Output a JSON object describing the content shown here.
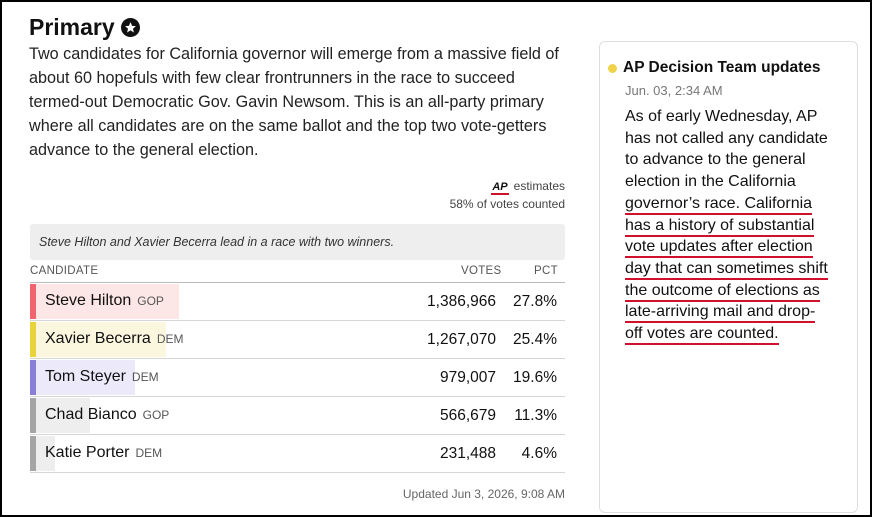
{
  "header": {
    "title": "Primary",
    "description": "Two candidates for California governor will emerge from a massive field of about 60 hopefuls with few clear frontrunners in the race to succeed termed-out Democratic Gov. Gavin Newsom. This is an all-party primary where all candidates are on the same ballot and the top two vote-getters advance to the general election."
  },
  "estimates": {
    "logo_text": "AP",
    "label": "estimates",
    "votes_counted": "58% of votes counted"
  },
  "banner": "Steve Hilton and Xavier Becerra lead in a race with two winners.",
  "table": {
    "headers": {
      "candidate": "CANDIDATE",
      "votes": "VOTES",
      "pct": "PCT"
    },
    "rows": [
      {
        "name": "Steve Hilton",
        "party": "GOP",
        "votes": "1,386,966",
        "pct": "27.8%",
        "share": 0.278
      },
      {
        "name": "Xavier Becerra",
        "party": "DEM",
        "votes": "1,267,070",
        "pct": "25.4%",
        "share": 0.254
      },
      {
        "name": "Tom Steyer",
        "party": "DEM",
        "votes": "979,007",
        "pct": "19.6%",
        "share": 0.196
      },
      {
        "name": "Chad Bianco",
        "party": "GOP",
        "votes": "566,679",
        "pct": "11.3%",
        "share": 0.113
      },
      {
        "name": "Katie Porter",
        "party": "DEM",
        "votes": "231,488",
        "pct": "4.6%",
        "share": 0.046
      }
    ]
  },
  "updated": "Updated Jun 3, 2026, 9:08 AM",
  "sidebar_card": {
    "title": "AP Decision Team updates",
    "time": "Jun. 03, 2:34 AM",
    "lines": [
      "As of early Wednesday, AP",
      "has not called any candidate",
      "to advance to the general",
      "election in the California",
      "governor’s race. California",
      "has a history of substantial",
      "vote updates after election",
      "day that can sometimes shift",
      "the outcome of elections as",
      "late-arriving mail and drop-",
      "off votes are counted."
    ],
    "underlined_from_line": 4
  },
  "colors": {
    "row_strips": [
      "#f2646d",
      "#e8d33a",
      "#8a7fd6",
      "#a5a5a5",
      "#a5a5a5"
    ],
    "row_fills": [
      "#fde6e6",
      "#fbf7df",
      "#eceafa",
      "#eeeeee",
      "#eeeeee"
    ],
    "underline": "#d0112b"
  }
}
